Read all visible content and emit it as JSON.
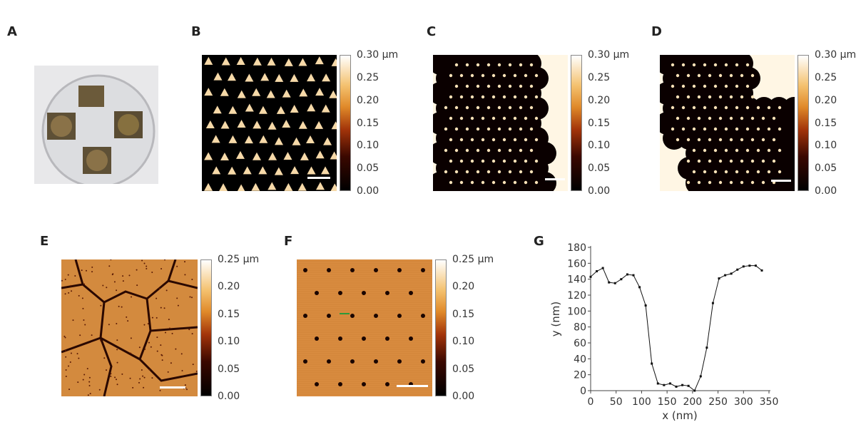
{
  "panels": {
    "a": "A",
    "b": "B",
    "c": "C",
    "d": "D",
    "e": "E",
    "f": "F",
    "g": "G"
  },
  "colorbar_030": {
    "ticks": [
      "0.30 µm",
      "0.25",
      "0.20",
      "0.15",
      "0.10",
      "0.05",
      "0.00"
    ]
  },
  "colorbar_025": {
    "ticks": [
      "0.25 µm",
      "0.20",
      "0.15",
      "0.10",
      "0.05",
      "0.00"
    ]
  },
  "chart_data": {
    "type": "line",
    "title": "",
    "xlabel": "x (nm)",
    "ylabel": "y (nm)",
    "xlim": [
      0,
      350
    ],
    "ylim": [
      0,
      180
    ],
    "xticks": [
      "0",
      "50",
      "100",
      "150",
      "200",
      "250",
      "300",
      "350"
    ],
    "yticks": [
      "0",
      "20",
      "40",
      "60",
      "80",
      "100",
      "120",
      "140",
      "160",
      "180"
    ],
    "x": [
      0,
      12,
      24,
      36,
      48,
      60,
      72,
      84,
      96,
      108,
      120,
      132,
      144,
      156,
      168,
      180,
      192,
      204,
      216,
      228,
      240,
      252,
      264,
      276,
      288,
      300,
      312,
      324,
      336
    ],
    "y": [
      143,
      150,
      154,
      136,
      135,
      140,
      146,
      145,
      130,
      107,
      34,
      9,
      7,
      9,
      5,
      7,
      6,
      0,
      18,
      54,
      110,
      141,
      145,
      147,
      152,
      156,
      157,
      157,
      151
    ]
  }
}
